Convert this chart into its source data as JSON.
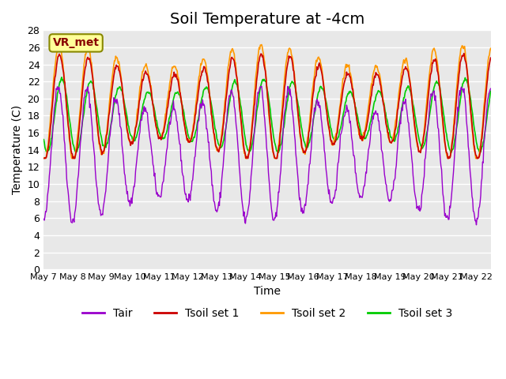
{
  "title": "Soil Temperature at -4cm",
  "xlabel": "Time",
  "ylabel": "Temperature (C)",
  "annotation": "VR_met",
  "ylim": [
    0,
    28
  ],
  "yticks": [
    0,
    2,
    4,
    6,
    8,
    10,
    12,
    14,
    16,
    18,
    20,
    22,
    24,
    26,
    28
  ],
  "xlim": [
    0,
    15.5
  ],
  "x_tick_labels": [
    "May 7",
    "May 8",
    "May 9",
    "May 10",
    "May 11",
    "May 12",
    "May 13",
    "May 14",
    "May 15",
    "May 16",
    "May 17",
    "May 18",
    "May 19",
    "May 20",
    "May 21",
    "May 22"
  ],
  "colors": {
    "Tair": "#9900cc",
    "Tsoil1": "#cc0000",
    "Tsoil2": "#ff9900",
    "Tsoil3": "#00cc00"
  },
  "legend_labels": [
    "Tair",
    "Tsoil set 1",
    "Tsoil set 2",
    "Tsoil set 3"
  ],
  "background_plot": "#e8e8e8",
  "background_fig": "#ffffff",
  "grid_color": "#ffffff",
  "title_fontsize": 14,
  "axis_fontsize": 10,
  "tick_fontsize": 9,
  "annotation_fontsize": 10,
  "annotation_box_color": "#ffff99",
  "annotation_text_color": "#880000",
  "annotation_edge_color": "#888800"
}
